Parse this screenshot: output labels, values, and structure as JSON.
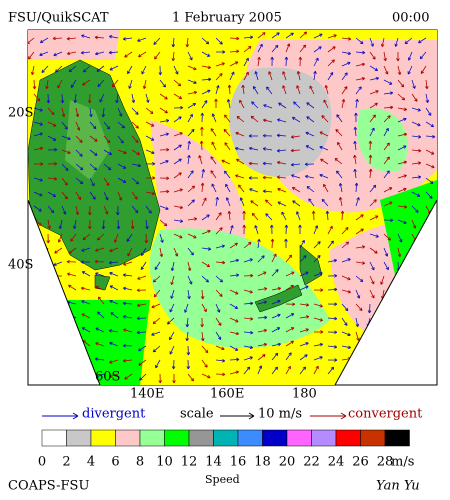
{
  "header": {
    "source": "FSU/QuikSCAT",
    "date": "1 February 2005",
    "time": "00:00"
  },
  "map": {
    "lat_labels": [
      "20S",
      "40S",
      "60S"
    ],
    "lon_labels": [
      "140E",
      "160E",
      "180"
    ]
  },
  "legend": {
    "divergent": "divergent",
    "scale": "scale",
    "scale_value": "10 m/s",
    "convergent": "convergent"
  },
  "colorbar": {
    "ticks": [
      0,
      2,
      4,
      6,
      8,
      10,
      12,
      14,
      16,
      18,
      20,
      22,
      24,
      26,
      28
    ],
    "unit": "m/s",
    "colors": [
      "#ffffff",
      "#c8c8c8",
      "#ffff00",
      "#ffc8c8",
      "#96ff96",
      "#00ff00",
      "#969696",
      "#00b4b4",
      "#3c8cff",
      "#0000c8",
      "#ff64ff",
      "#b48cff",
      "#ff0000",
      "#c83200",
      "#000000"
    ]
  },
  "footer": {
    "left": "COAPS-FSU",
    "center": "Speed",
    "right": "Yan Yu"
  }
}
